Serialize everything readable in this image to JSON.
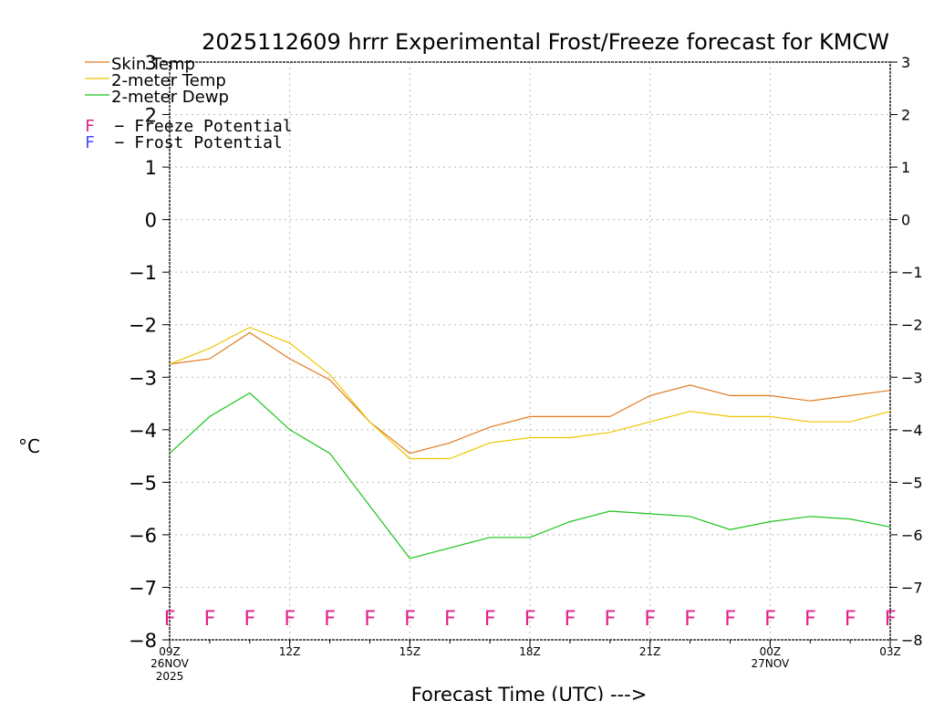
{
  "chart_data": {
    "type": "line",
    "title": "2025112609 hrrr Experimental Frost/Freeze forecast for KMCW",
    "xlabel": "Forecast Time (UTC) --->",
    "ylabel": "°C",
    "ylim": [
      -8,
      3
    ],
    "yticks": [
      3,
      2,
      1,
      0,
      -1,
      -2,
      -3,
      -4,
      -5,
      -6,
      -7,
      -8
    ],
    "ytick_labels": [
      "3",
      "2",
      "1",
      "0",
      "−1",
      "−2",
      "−3",
      "−4",
      "−5",
      "−6",
      "−7",
      "−8"
    ],
    "xlim": [
      0,
      18
    ],
    "grid": true,
    "x_hours": [
      0,
      1,
      2,
      3,
      4,
      5,
      6,
      7,
      8,
      9,
      10,
      11,
      12,
      13,
      14,
      15,
      16,
      17,
      18
    ],
    "xticks": [
      {
        "x": 0,
        "label": "09Z",
        "sub1": "26NOV",
        "sub2": "2025"
      },
      {
        "x": 3,
        "label": "12Z",
        "sub1": "",
        "sub2": ""
      },
      {
        "x": 6,
        "label": "15Z",
        "sub1": "",
        "sub2": ""
      },
      {
        "x": 9,
        "label": "18Z",
        "sub1": "",
        "sub2": ""
      },
      {
        "x": 12,
        "label": "21Z",
        "sub1": "",
        "sub2": ""
      },
      {
        "x": 15,
        "label": "00Z",
        "sub1": "27NOV",
        "sub2": ""
      },
      {
        "x": 18,
        "label": "03Z",
        "sub1": "",
        "sub2": ""
      }
    ],
    "series": [
      {
        "name": "Skin Temp",
        "color": "#e07b20",
        "values": [
          -2.75,
          -2.65,
          -2.15,
          -2.65,
          -3.05,
          -3.85,
          -4.45,
          -4.25,
          -3.95,
          -3.75,
          -3.75,
          -3.75,
          -3.35,
          -3.15,
          -3.35,
          -3.35,
          -3.45,
          -3.35,
          -3.25
        ]
      },
      {
        "name": "2-meter Temp",
        "color": "#f0c400",
        "values": [
          -2.75,
          -2.45,
          -2.05,
          -2.35,
          -2.95,
          -3.85,
          -4.55,
          -4.55,
          -4.25,
          -4.15,
          -4.15,
          -4.05,
          -3.85,
          -3.65,
          -3.75,
          -3.75,
          -3.85,
          -3.85,
          -3.65
        ]
      },
      {
        "name": "2-meter Dewp",
        "color": "#1cc41c",
        "values": [
          -4.45,
          -3.75,
          -3.3,
          -4.0,
          -4.45,
          -5.45,
          -6.45,
          -6.25,
          -6.05,
          -6.05,
          -5.75,
          -5.55,
          -5.6,
          -5.65,
          -5.9,
          -5.75,
          -5.65,
          -5.7,
          -5.85
        ]
      }
    ],
    "markers": {
      "letter": "F",
      "color": "#e0208c",
      "y_value": -7.55,
      "x": [
        0,
        1,
        2,
        3,
        4,
        5,
        6,
        7,
        8,
        9,
        10,
        11,
        12,
        13,
        14,
        15,
        16,
        17,
        18
      ]
    },
    "legend": {
      "placement": "top-left",
      "freeze_label": "F  − Freeze Potential",
      "frost_label": "F  − Frost Potential",
      "freeze_color": "#e0208c",
      "frost_color": "#4a4aff"
    }
  }
}
